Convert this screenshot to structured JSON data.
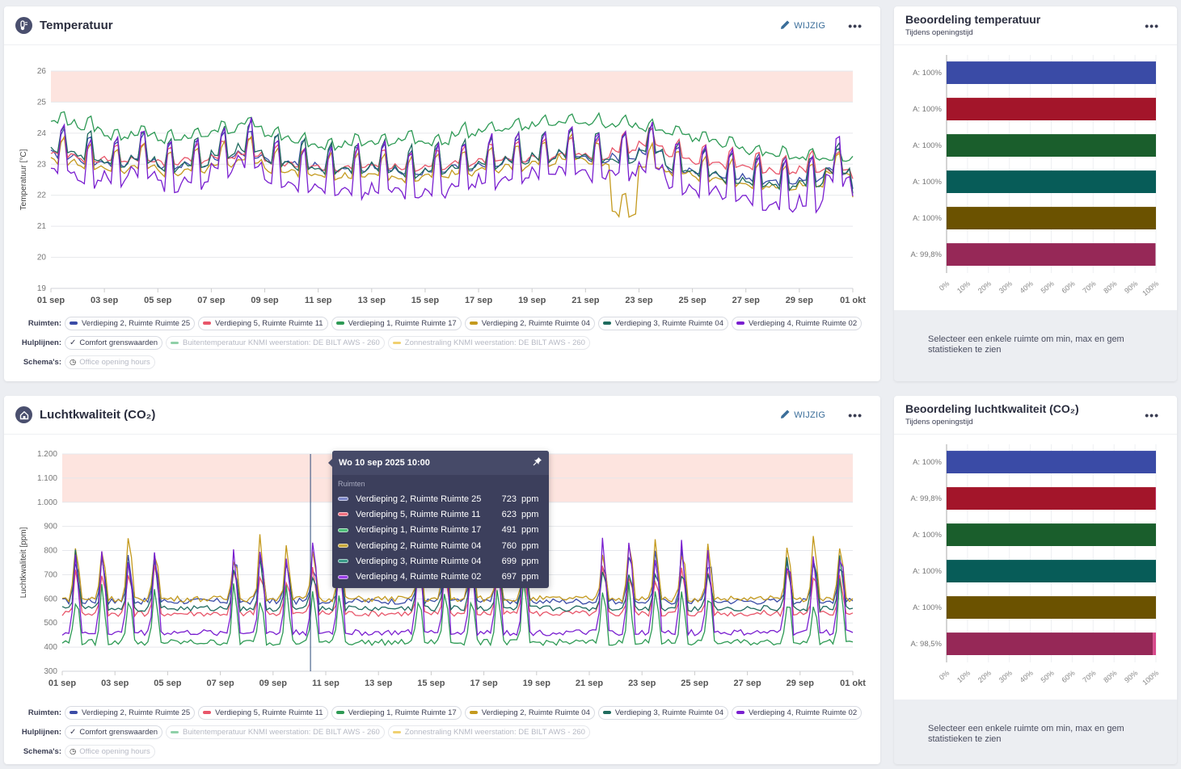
{
  "panels": {
    "temperature": {
      "title": "Temperatuur",
      "edit_label": "WIJZIG",
      "more_label": "•••"
    },
    "co2": {
      "title": "Luchtkwaliteit (CO₂)",
      "edit_label": "WIJZIG",
      "more_label": "•••"
    }
  },
  "side": {
    "temperature": {
      "title": "Beoordeling temperatuur",
      "subtitle": "Tijdens openingstijd",
      "more_label": "•••",
      "note": "Selecteer een enkele ruimte om min, max en gem statistieken te zien"
    },
    "co2": {
      "title": "Beoordeling luchtkwaliteit (CO₂)",
      "subtitle": "Tijdens openingstijd",
      "more_label": "•••",
      "note": "Selecteer een enkele ruimte om min, max en gem statistieken te zien"
    }
  },
  "legend": {
    "rooms_label": "Ruimten:",
    "guides_label": "Hulplijnen:",
    "schedules_label": "Schema's:",
    "rooms": [
      {
        "name": "Verdieping 2, Ruimte Ruimte 25",
        "color": "#3a4ba6"
      },
      {
        "name": "Verdieping 5, Ruimte Ruimte 11",
        "color": "#e8566a"
      },
      {
        "name": "Verdieping 1, Ruimte Ruimte 17",
        "color": "#2e9a55"
      },
      {
        "name": "Verdieping 2, Ruimte Ruimte 04",
        "color": "#c49a1e"
      },
      {
        "name": "Verdieping 3, Ruimte Ruimte 04",
        "color": "#1f6b5e"
      },
      {
        "name": "Verdieping 4, Ruimte Ruimte 02",
        "color": "#7a1fd0"
      }
    ],
    "guides": [
      {
        "name": "Comfort grenswaarden",
        "active": true,
        "icon": "checkmark"
      },
      {
        "name": "Buitentemperatuur KNMI weerstation: DE BILT AWS - 260",
        "active": false,
        "color": "#8fd0a8"
      },
      {
        "name": "Zonnestraling KNMI weerstation: DE BILT AWS - 260",
        "active": false,
        "color": "#f0d070"
      }
    ],
    "schedules": [
      {
        "name": "Office opening hours",
        "active": false,
        "icon": "clock"
      }
    ]
  },
  "tooltip": {
    "title": "Wo 10 sep 2025 10:00",
    "section": "Ruimten",
    "unit": "ppm",
    "rows": [
      {
        "name": "Verdieping 2, Ruimte Ruimte 25",
        "value": "723",
        "color": "#7c86c8"
      },
      {
        "name": "Verdieping 5, Ruimte Ruimte 11",
        "value": "623",
        "color": "#f07080"
      },
      {
        "name": "Verdieping 1, Ruimte Ruimte 17",
        "value": "491",
        "color": "#4cc078"
      },
      {
        "name": "Verdieping 2, Ruimte Ruimte 04",
        "value": "760",
        "color": "#c8a838"
      },
      {
        "name": "Verdieping 3, Ruimte Ruimte 04",
        "value": "699",
        "color": "#3a9a88"
      },
      {
        "name": "Verdieping 4, Ruimte Ruimte 02",
        "value": "697",
        "color": "#9a40e8"
      }
    ]
  },
  "chart_data": [
    {
      "type": "line",
      "title": "Temperatuur",
      "ylabel": "Temperatuur [°C]",
      "xlabel": "",
      "ylim": [
        19,
        26
      ],
      "yticks": [
        "19",
        "20",
        "21",
        "22",
        "23",
        "24",
        "25",
        "26"
      ],
      "xticks": [
        "01 sep",
        "03 sep",
        "05 sep",
        "07 sep",
        "09 sep",
        "11 sep",
        "13 sep",
        "15 sep",
        "17 sep",
        "19 sep",
        "21 sep",
        "23 sep",
        "25 sep",
        "27 sep",
        "29 sep",
        "01 okt"
      ],
      "comfort_band": [
        25,
        26
      ],
      "x_days": 30,
      "series": [
        {
          "name": "Verdieping 2, Ruimte Ruimte 25",
          "color": "#3a4ba6",
          "base": 23.2,
          "amp": 0.5,
          "values_daily_mean": [
            23.4,
            23.2,
            23.1,
            23.3,
            23.0,
            23.1,
            23.3,
            23.4,
            23.2,
            23.1,
            22.9,
            22.9,
            23.0,
            22.8,
            22.9,
            23.0,
            23.1,
            23.2,
            23.3,
            23.4,
            23.2,
            23.3,
            23.5,
            22.9,
            22.8,
            22.7,
            22.6,
            22.5,
            22.6,
            22.9,
            22.2
          ]
        },
        {
          "name": "Verdieping 5, Ruimte Ruimte 11",
          "color": "#e8566a",
          "base": 23.2,
          "amp": 0.35,
          "values_daily_mean": [
            23.4,
            23.2,
            23.2,
            23.2,
            23.1,
            23.2,
            23.3,
            23.4,
            23.1,
            23.0,
            22.9,
            23.0,
            23.0,
            22.9,
            23.0,
            23.1,
            23.2,
            23.2,
            23.3,
            23.4,
            23.3,
            23.5,
            23.7,
            23.3,
            23.1,
            23.0,
            22.9,
            22.8,
            22.9,
            22.9,
            22.5
          ]
        },
        {
          "name": "Verdieping 1, Ruimte Ruimte 17",
          "color": "#2e9a55",
          "base": 23.9,
          "amp": 0.2,
          "values_daily_mean": [
            24.4,
            24.2,
            23.9,
            24.0,
            23.8,
            23.9,
            24.1,
            24.3,
            23.9,
            23.7,
            23.6,
            23.7,
            23.7,
            23.8,
            23.7,
            24.0,
            24.1,
            24.2,
            24.3,
            24.4,
            24.3,
            24.3,
            24.1,
            24.0,
            23.8,
            23.6,
            23.4,
            23.3,
            23.2,
            23.2,
            23.2
          ]
        },
        {
          "name": "Verdieping 2, Ruimte Ruimte 04",
          "color": "#c49a1e",
          "base": 23.0,
          "amp": 0.45,
          "values_daily_mean": [
            23.2,
            23.0,
            22.9,
            23.0,
            22.8,
            22.9,
            23.1,
            23.2,
            22.9,
            22.8,
            22.7,
            22.7,
            22.7,
            22.6,
            22.7,
            22.8,
            22.9,
            23.0,
            23.1,
            23.3,
            23.1,
            21.5,
            23.0,
            22.8,
            22.6,
            22.5,
            22.4,
            22.3,
            22.4,
            22.8,
            22.0
          ]
        },
        {
          "name": "Verdieping 3, Ruimte Ruimte 04",
          "color": "#1f6b5e",
          "base": 23.2,
          "amp": 0.55,
          "values_daily_mean": [
            23.5,
            23.3,
            23.1,
            23.3,
            23.0,
            23.1,
            23.4,
            23.6,
            23.2,
            23.0,
            22.9,
            22.9,
            23.0,
            22.8,
            22.9,
            23.0,
            23.1,
            23.2,
            23.3,
            23.4,
            23.3,
            23.2,
            23.5,
            22.9,
            22.8,
            22.6,
            22.5,
            22.4,
            22.5,
            22.9,
            22.1
          ]
        },
        {
          "name": "Verdieping 4, Ruimte Ruimte 02",
          "color": "#7a1fd0",
          "base": 22.8,
          "amp": 0.9,
          "values_daily_mean": [
            23.0,
            22.6,
            22.7,
            22.9,
            22.5,
            22.6,
            23.0,
            23.2,
            22.6,
            22.4,
            22.3,
            22.3,
            22.4,
            22.2,
            22.3,
            22.5,
            22.6,
            22.7,
            22.9,
            23.0,
            22.8,
            22.9,
            23.1,
            22.5,
            22.3,
            22.1,
            21.9,
            21.8,
            21.9,
            22.7,
            22.0
          ]
        }
      ]
    },
    {
      "type": "line",
      "title": "Luchtkwaliteit (CO₂)",
      "ylabel": "Luchtkwaliteit [ppm]",
      "xlabel": "",
      "ylim": [
        300,
        1200
      ],
      "yticks": [
        "300",
        "400",
        "500",
        "600",
        "700",
        "800",
        "900",
        "1.000",
        "1.100",
        "1.200"
      ],
      "xticks": [
        "01 sep",
        "03 sep",
        "05 sep",
        "07 sep",
        "09 sep",
        "11 sep",
        "13 sep",
        "15 sep",
        "17 sep",
        "19 sep",
        "21 sep",
        "23 sep",
        "25 sep",
        "27 sep",
        "29 sep",
        "01 okt"
      ],
      "comfort_band": [
        1000,
        1200
      ],
      "x_days": 30,
      "crosshair_day": 9.42,
      "series": [
        {
          "name": "Verdieping 2, Ruimte Ruimte 25",
          "color": "#3a4ba6",
          "baseline": 590,
          "peak": 780
        },
        {
          "name": "Verdieping 5, Ruimte Ruimte 11",
          "color": "#e8566a",
          "baseline": 540,
          "peak": 720
        },
        {
          "name": "Verdieping 1, Ruimte Ruimte 17",
          "color": "#2e9a55",
          "baseline": 420,
          "peak": 640
        },
        {
          "name": "Verdieping 2, Ruimte Ruimte 04",
          "color": "#c49a1e",
          "baseline": 600,
          "peak": 830
        },
        {
          "name": "Verdieping 3, Ruimte Ruimte 04",
          "color": "#1f6b5e",
          "baseline": 560,
          "peak": 760
        },
        {
          "name": "Verdieping 4, Ruimte Ruimte 02",
          "color": "#7a1fd0",
          "baseline": 460,
          "peak": 820
        }
      ]
    },
    {
      "type": "bar",
      "title": "Beoordeling temperatuur",
      "orientation": "horizontal",
      "categories": [
        "A: 100%",
        "A: 100%",
        "A: 100%",
        "A: 100%",
        "A: 100%",
        "A: 99,8%"
      ],
      "values": [
        100,
        100,
        100,
        100,
        100,
        99.8
      ],
      "colors": [
        "#3a4ba6",
        "#a3152a",
        "#1a5e2c",
        "#075c58",
        "#6b5200",
        "#962857"
      ],
      "xticks": [
        "0%",
        "10%",
        "20%",
        "30%",
        "40%",
        "50%",
        "60%",
        "70%",
        "80%",
        "90%",
        "100%"
      ],
      "xlim": [
        0,
        100
      ]
    },
    {
      "type": "bar",
      "title": "Beoordeling luchtkwaliteit (CO₂)",
      "orientation": "horizontal",
      "categories": [
        "A: 100%",
        "A: 99,8%",
        "A: 100%",
        "A: 100%",
        "A: 100%",
        "A: 98,5%"
      ],
      "values": [
        100,
        99.8,
        100,
        100,
        100,
        98.5
      ],
      "colors": [
        "#3a4ba6",
        "#a3152a",
        "#1a5e2c",
        "#075c58",
        "#6b5200",
        "#962857"
      ],
      "remainder_color": "#d84a8c",
      "xticks": [
        "0%",
        "10%",
        "20%",
        "30%",
        "40%",
        "50%",
        "60%",
        "70%",
        "80%",
        "90%",
        "100%"
      ],
      "xlim": [
        0,
        100
      ]
    }
  ]
}
